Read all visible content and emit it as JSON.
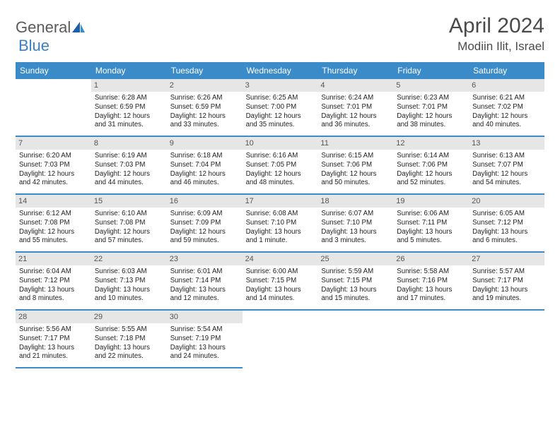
{
  "brand": {
    "part1": "General",
    "part2": "Blue"
  },
  "title": "April 2024",
  "location": "Modiin Ilit, Israel",
  "colors": {
    "header_bg": "#3b8bc9",
    "header_text": "#ffffff",
    "daynum_bg": "#e6e6e6",
    "border": "#3b8bc9",
    "logo_gray": "#5a5a5a",
    "logo_blue": "#3b7fc4"
  },
  "weekdays": [
    "Sunday",
    "Monday",
    "Tuesday",
    "Wednesday",
    "Thursday",
    "Friday",
    "Saturday"
  ],
  "start_offset": 1,
  "days": [
    {
      "n": 1,
      "sunrise": "6:28 AM",
      "sunset": "6:59 PM",
      "daylight": "12 hours and 31 minutes."
    },
    {
      "n": 2,
      "sunrise": "6:26 AM",
      "sunset": "6:59 PM",
      "daylight": "12 hours and 33 minutes."
    },
    {
      "n": 3,
      "sunrise": "6:25 AM",
      "sunset": "7:00 PM",
      "daylight": "12 hours and 35 minutes."
    },
    {
      "n": 4,
      "sunrise": "6:24 AM",
      "sunset": "7:01 PM",
      "daylight": "12 hours and 36 minutes."
    },
    {
      "n": 5,
      "sunrise": "6:23 AM",
      "sunset": "7:01 PM",
      "daylight": "12 hours and 38 minutes."
    },
    {
      "n": 6,
      "sunrise": "6:21 AM",
      "sunset": "7:02 PM",
      "daylight": "12 hours and 40 minutes."
    },
    {
      "n": 7,
      "sunrise": "6:20 AM",
      "sunset": "7:03 PM",
      "daylight": "12 hours and 42 minutes."
    },
    {
      "n": 8,
      "sunrise": "6:19 AM",
      "sunset": "7:03 PM",
      "daylight": "12 hours and 44 minutes."
    },
    {
      "n": 9,
      "sunrise": "6:18 AM",
      "sunset": "7:04 PM",
      "daylight": "12 hours and 46 minutes."
    },
    {
      "n": 10,
      "sunrise": "6:16 AM",
      "sunset": "7:05 PM",
      "daylight": "12 hours and 48 minutes."
    },
    {
      "n": 11,
      "sunrise": "6:15 AM",
      "sunset": "7:06 PM",
      "daylight": "12 hours and 50 minutes."
    },
    {
      "n": 12,
      "sunrise": "6:14 AM",
      "sunset": "7:06 PM",
      "daylight": "12 hours and 52 minutes."
    },
    {
      "n": 13,
      "sunrise": "6:13 AM",
      "sunset": "7:07 PM",
      "daylight": "12 hours and 54 minutes."
    },
    {
      "n": 14,
      "sunrise": "6:12 AM",
      "sunset": "7:08 PM",
      "daylight": "12 hours and 55 minutes."
    },
    {
      "n": 15,
      "sunrise": "6:10 AM",
      "sunset": "7:08 PM",
      "daylight": "12 hours and 57 minutes."
    },
    {
      "n": 16,
      "sunrise": "6:09 AM",
      "sunset": "7:09 PM",
      "daylight": "12 hours and 59 minutes."
    },
    {
      "n": 17,
      "sunrise": "6:08 AM",
      "sunset": "7:10 PM",
      "daylight": "13 hours and 1 minute."
    },
    {
      "n": 18,
      "sunrise": "6:07 AM",
      "sunset": "7:10 PM",
      "daylight": "13 hours and 3 minutes."
    },
    {
      "n": 19,
      "sunrise": "6:06 AM",
      "sunset": "7:11 PM",
      "daylight": "13 hours and 5 minutes."
    },
    {
      "n": 20,
      "sunrise": "6:05 AM",
      "sunset": "7:12 PM",
      "daylight": "13 hours and 6 minutes."
    },
    {
      "n": 21,
      "sunrise": "6:04 AM",
      "sunset": "7:12 PM",
      "daylight": "13 hours and 8 minutes."
    },
    {
      "n": 22,
      "sunrise": "6:03 AM",
      "sunset": "7:13 PM",
      "daylight": "13 hours and 10 minutes."
    },
    {
      "n": 23,
      "sunrise": "6:01 AM",
      "sunset": "7:14 PM",
      "daylight": "13 hours and 12 minutes."
    },
    {
      "n": 24,
      "sunrise": "6:00 AM",
      "sunset": "7:15 PM",
      "daylight": "13 hours and 14 minutes."
    },
    {
      "n": 25,
      "sunrise": "5:59 AM",
      "sunset": "7:15 PM",
      "daylight": "13 hours and 15 minutes."
    },
    {
      "n": 26,
      "sunrise": "5:58 AM",
      "sunset": "7:16 PM",
      "daylight": "13 hours and 17 minutes."
    },
    {
      "n": 27,
      "sunrise": "5:57 AM",
      "sunset": "7:17 PM",
      "daylight": "13 hours and 19 minutes."
    },
    {
      "n": 28,
      "sunrise": "5:56 AM",
      "sunset": "7:17 PM",
      "daylight": "13 hours and 21 minutes."
    },
    {
      "n": 29,
      "sunrise": "5:55 AM",
      "sunset": "7:18 PM",
      "daylight": "13 hours and 22 minutes."
    },
    {
      "n": 30,
      "sunrise": "5:54 AM",
      "sunset": "7:19 PM",
      "daylight": "13 hours and 24 minutes."
    }
  ]
}
